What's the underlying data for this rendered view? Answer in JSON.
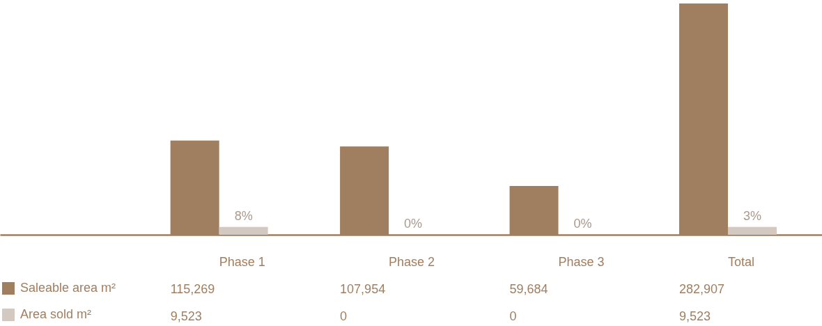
{
  "chart_data": {
    "type": "bar",
    "categories": [
      "Phase 1",
      "Phase 2",
      "Phase 3",
      "Total"
    ],
    "series": [
      {
        "name": "Saleable area m²",
        "color": "#a07e60",
        "values": [
          115269,
          107954,
          59684,
          282907
        ],
        "value_labels": [
          "115,269",
          "107,954",
          "59,684",
          "282,907"
        ]
      },
      {
        "name": "Area sold m²",
        "color": "#d3c9c1",
        "values": [
          9523,
          0,
          0,
          9523
        ],
        "value_labels": [
          "9,523",
          "0",
          "0",
          "9,523"
        ]
      }
    ],
    "annotations": [
      {
        "text": "8%",
        "x": "Phase 1",
        "y": 9523
      },
      {
        "text": "0%",
        "x": "Phase 2",
        "y": 0
      },
      {
        "text": "0%",
        "x": "Phase 3",
        "y": 0
      },
      {
        "text": "3%",
        "x": "Total",
        "y": 9523
      }
    ],
    "legend": "bottom left"
  }
}
